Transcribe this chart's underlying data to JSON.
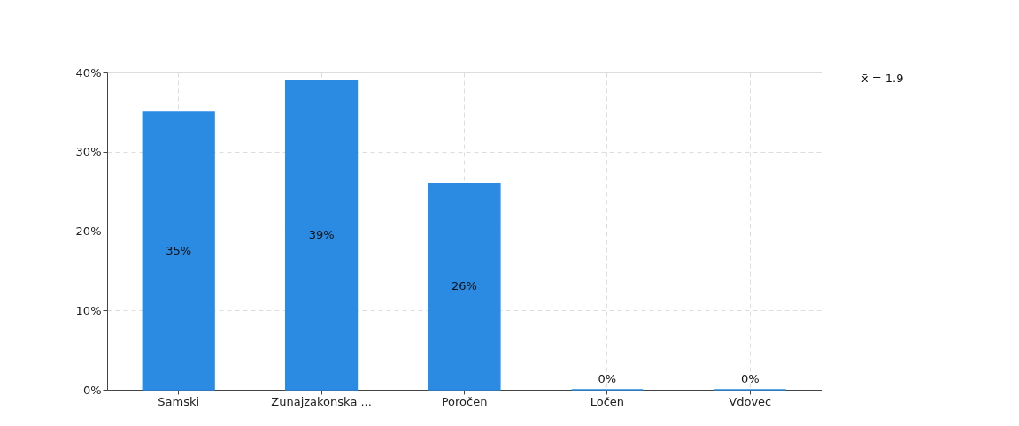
{
  "chart_data": {
    "type": "bar",
    "categories": [
      "Samski",
      "Zunajzakonska ...",
      "Poročen",
      "Ločen",
      "Vdovec"
    ],
    "values": [
      35,
      39,
      26,
      0,
      0
    ],
    "color": "#2b8be3",
    "value_labels": [
      "35%",
      "39%",
      "26%",
      "0%",
      "0%"
    ],
    "ylim": [
      0,
      40
    ],
    "yticks": [
      {
        "value": 0,
        "label": "0%"
      },
      {
        "value": 10,
        "label": "10%"
      },
      {
        "value": 20,
        "label": "20%"
      },
      {
        "value": 30,
        "label": "30%"
      },
      {
        "value": 40,
        "label": "40%"
      }
    ],
    "grid": true,
    "annotations": [
      "x̄ = 1.9"
    ]
  }
}
